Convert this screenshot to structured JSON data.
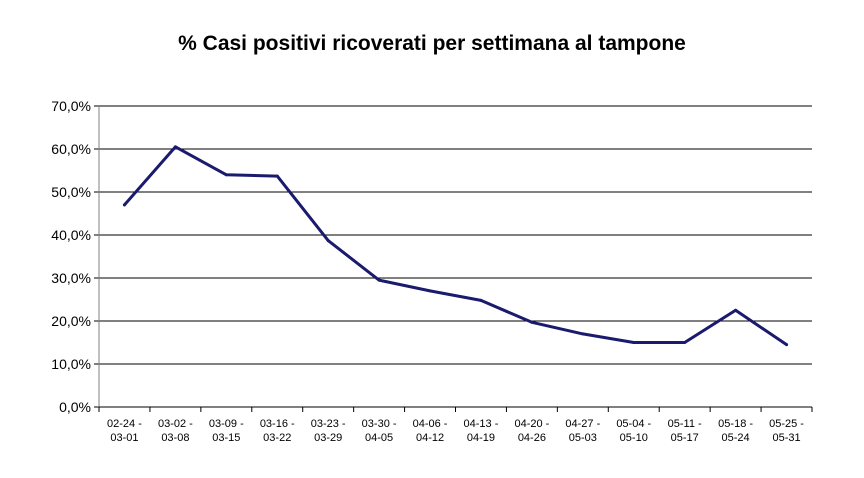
{
  "chart_data": {
    "type": "line",
    "title": "% Casi positivi ricoverati per settimana al tampone",
    "xlabel": "",
    "ylabel": "",
    "categories": [
      [
        "02-24 -",
        "03-01"
      ],
      [
        "03-02 -",
        "03-08"
      ],
      [
        "03-09 -",
        "03-15"
      ],
      [
        "03-16 -",
        "03-22"
      ],
      [
        "03-23 -",
        "03-29"
      ],
      [
        "03-30 -",
        "04-05"
      ],
      [
        "04-06 -",
        "04-12"
      ],
      [
        "04-13 -",
        "04-19"
      ],
      [
        "04-20 -",
        "04-26"
      ],
      [
        "04-27 -",
        "05-03"
      ],
      [
        "05-04 -",
        "05-10"
      ],
      [
        "05-11 -",
        "05-17"
      ],
      [
        "05-18 -",
        "05-24"
      ],
      [
        "05-25 -",
        "05-31"
      ]
    ],
    "series": [
      {
        "values": [
          47.0,
          60.5,
          54.0,
          53.7,
          38.7,
          29.5,
          27.0,
          24.8,
          19.7,
          17.0,
          15.0,
          15.0,
          22.5,
          14.5
        ],
        "color": "#1a1a6e"
      }
    ],
    "ylim": [
      0,
      70
    ],
    "yticks": [
      "0,0%",
      "10,0%",
      "20,0%",
      "30,0%",
      "40,0%",
      "50,0%",
      "60,0%",
      "70,0%"
    ],
    "grid": true,
    "legend": "none"
  }
}
